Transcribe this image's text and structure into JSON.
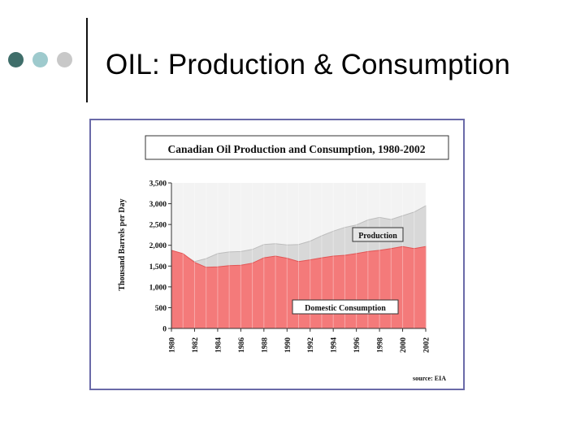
{
  "slide": {
    "title": "OIL: Production & Consumption",
    "bullet_colors": [
      "#3f6e6a",
      "#9ecacd",
      "#c8c8c8"
    ]
  },
  "chart_data": {
    "type": "area",
    "title": "Canadian Oil Production and Consumption, 1980-2002",
    "xlabel": "",
    "ylabel": "Thousand Barrels per Day",
    "x": [
      1980,
      1981,
      1982,
      1983,
      1984,
      1985,
      1986,
      1987,
      1988,
      1989,
      1990,
      1991,
      1992,
      1993,
      1994,
      1995,
      1996,
      1997,
      1998,
      1999,
      2000,
      2001,
      2002
    ],
    "x_tick_labels": [
      "1980",
      "1982",
      "1984",
      "1986",
      "1988",
      "1990",
      "1992",
      "1994",
      "1996",
      "1998",
      "2000",
      "2002"
    ],
    "ylim": [
      0,
      3500
    ],
    "y_ticks": [
      0,
      500,
      1000,
      1500,
      2000,
      2500,
      3000,
      3500
    ],
    "y_tick_labels": [
      "0",
      "500",
      "1,000",
      "1,500",
      "2,000",
      "2,500",
      "3,000",
      "3,500"
    ],
    "series": [
      {
        "name": "Production",
        "label": "Production",
        "color": "#d8d8d8",
        "values": [
          1820,
          1780,
          1610,
          1680,
          1800,
          1840,
          1850,
          1900,
          2020,
          2040,
          2010,
          2020,
          2100,
          2230,
          2340,
          2430,
          2490,
          2610,
          2670,
          2620,
          2710,
          2800,
          2950
        ]
      },
      {
        "name": "Domestic Consumption",
        "label": "Domestic Consumption",
        "color": "#f47a7a",
        "values": [
          1880,
          1800,
          1590,
          1470,
          1480,
          1510,
          1520,
          1570,
          1700,
          1740,
          1690,
          1610,
          1650,
          1700,
          1740,
          1760,
          1800,
          1850,
          1880,
          1920,
          1970,
          1920,
          1970
        ]
      }
    ],
    "source": "source: EIA"
  }
}
